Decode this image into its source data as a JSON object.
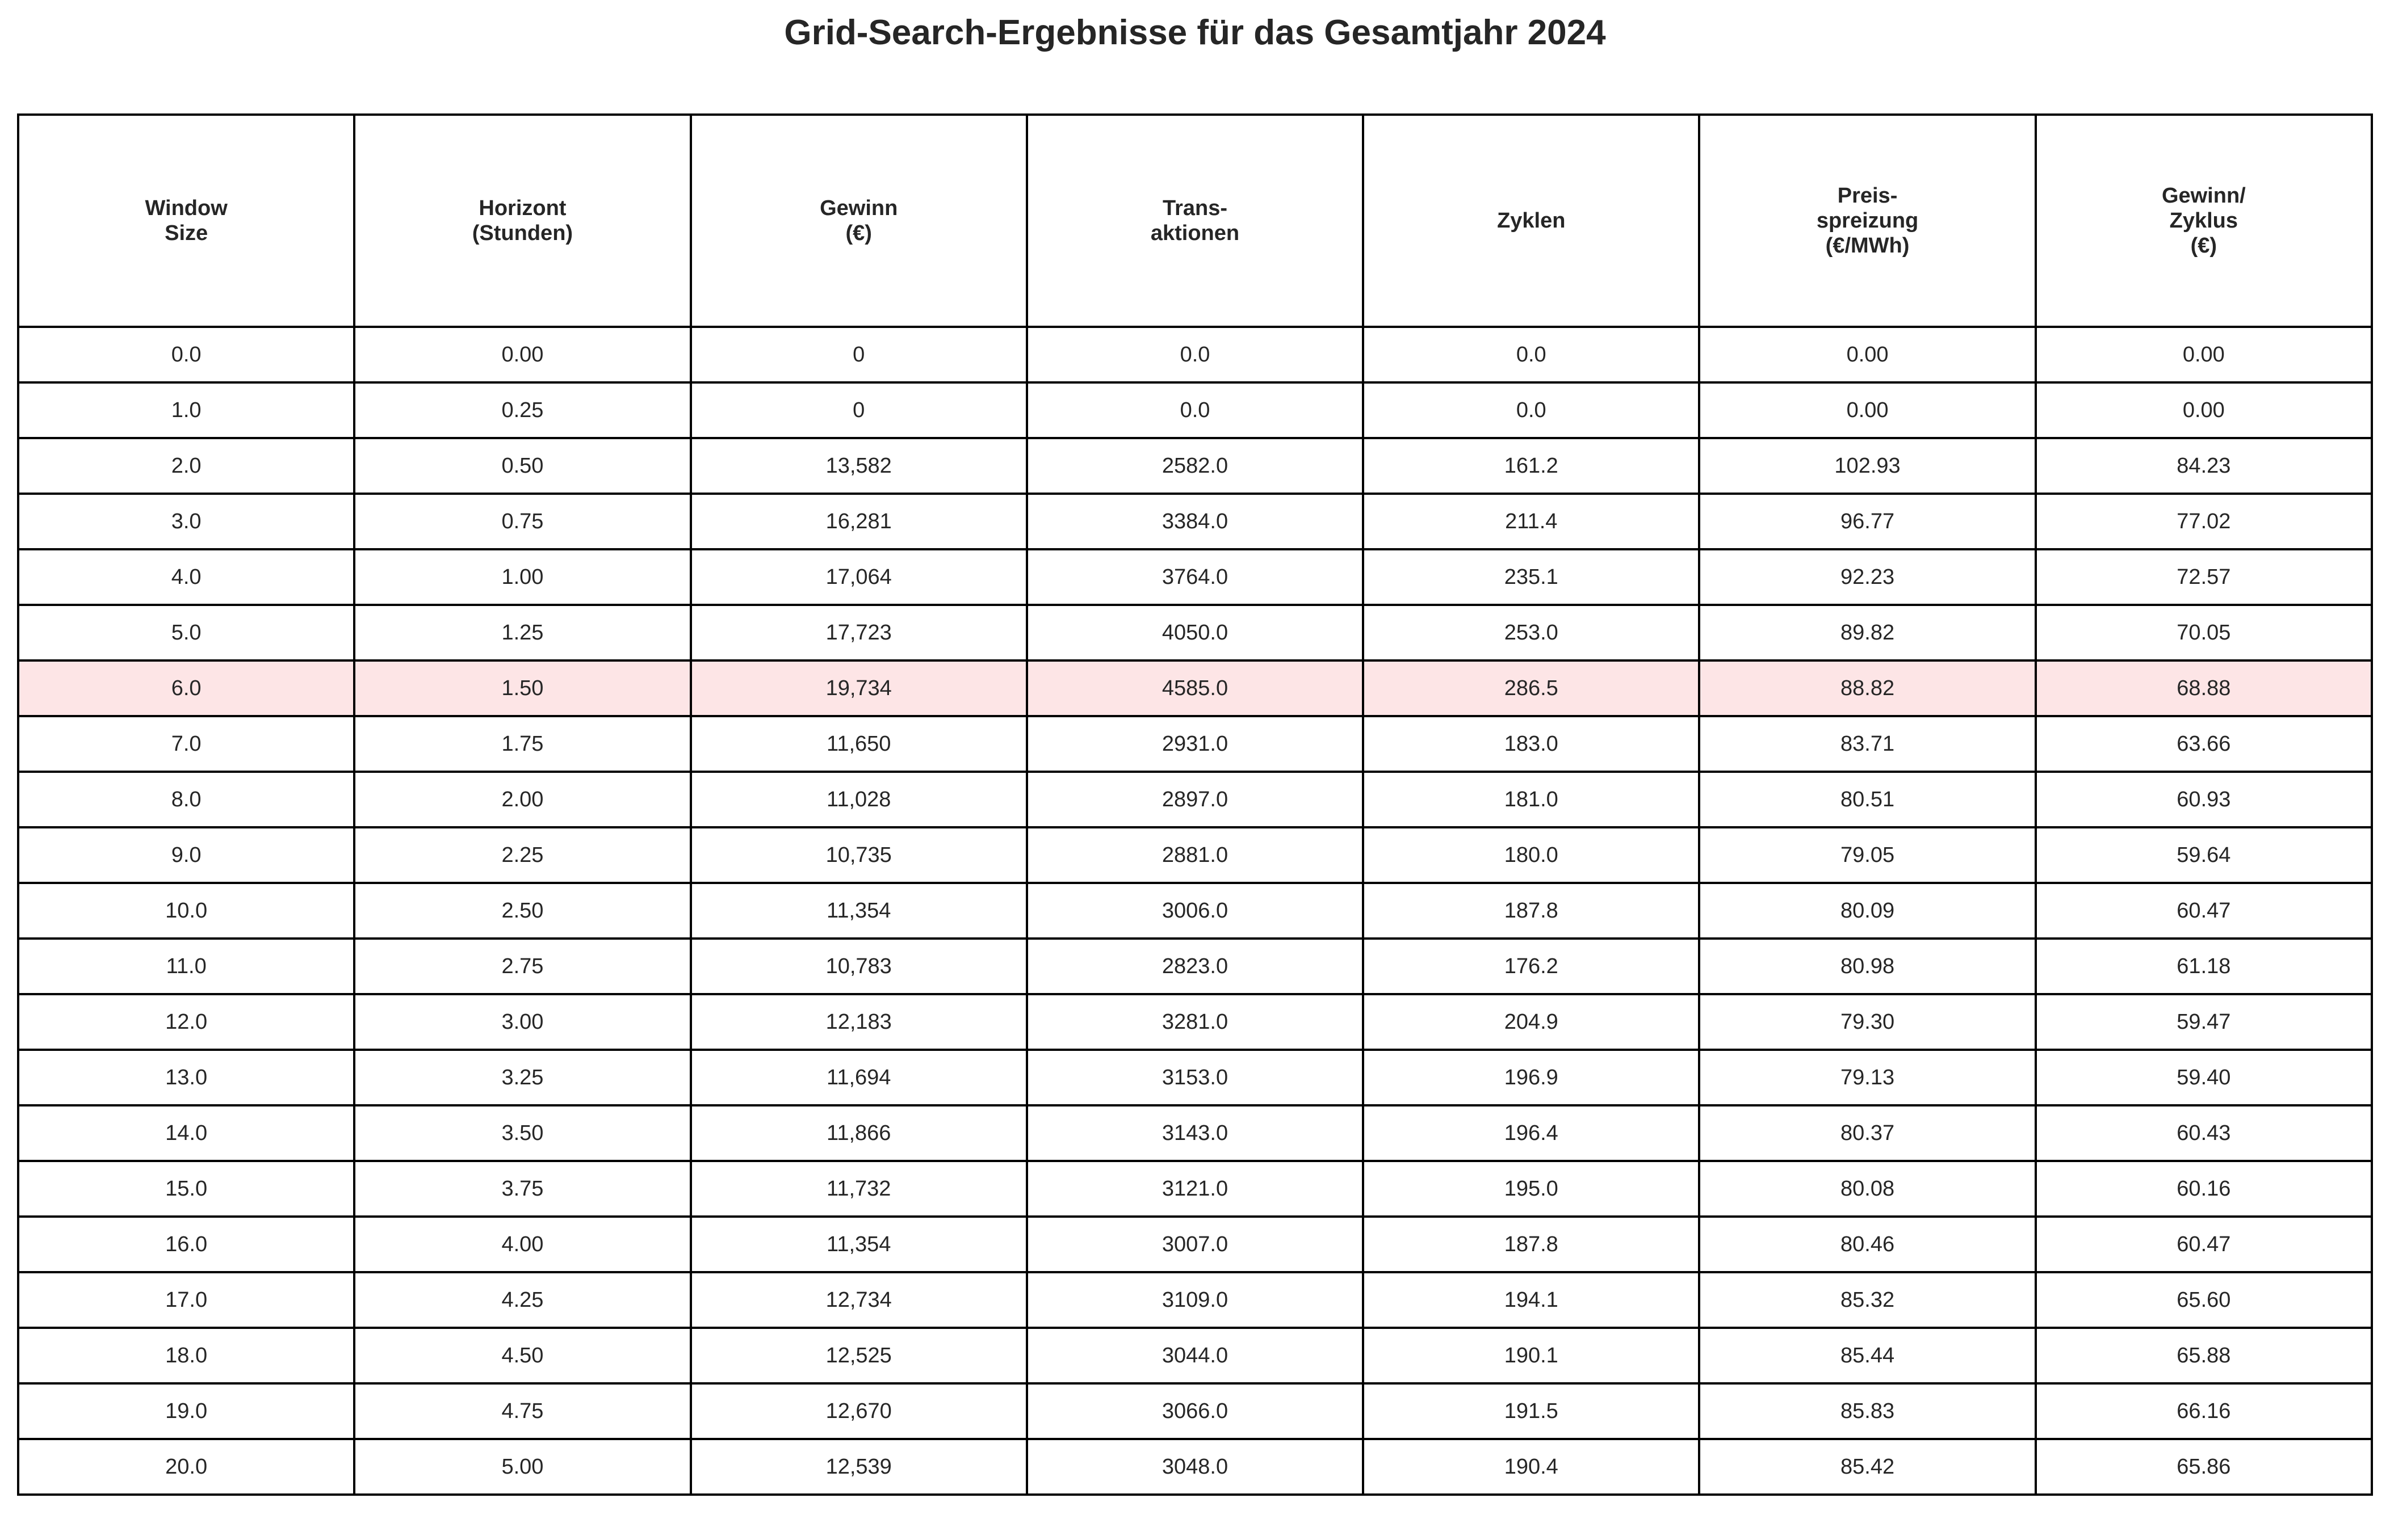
{
  "chart_data": {
    "type": "table",
    "title": "Grid-Search-Ergebnisse für das Gesamtjahr 2024",
    "columns": [
      "Window\nSize",
      "Horizont\n(Stunden)",
      "Gewinn\n(€)",
      "Trans-\naktionen",
      "Zyklen",
      "Preis-\nspreizung\n(€/MWh)",
      "Gewinn/\nZyklus\n(€)"
    ],
    "rows": [
      [
        "0.0",
        "0.00",
        "0",
        "0.0",
        "0.0",
        "0.00",
        "0.00"
      ],
      [
        "1.0",
        "0.25",
        "0",
        "0.0",
        "0.0",
        "0.00",
        "0.00"
      ],
      [
        "2.0",
        "0.50",
        "13,582",
        "2582.0",
        "161.2",
        "102.93",
        "84.23"
      ],
      [
        "3.0",
        "0.75",
        "16,281",
        "3384.0",
        "211.4",
        "96.77",
        "77.02"
      ],
      [
        "4.0",
        "1.00",
        "17,064",
        "3764.0",
        "235.1",
        "92.23",
        "72.57"
      ],
      [
        "5.0",
        "1.25",
        "17,723",
        "4050.0",
        "253.0",
        "89.82",
        "70.05"
      ],
      [
        "6.0",
        "1.50",
        "19,734",
        "4585.0",
        "286.5",
        "88.82",
        "68.88"
      ],
      [
        "7.0",
        "1.75",
        "11,650",
        "2931.0",
        "183.0",
        "83.71",
        "63.66"
      ],
      [
        "8.0",
        "2.00",
        "11,028",
        "2897.0",
        "181.0",
        "80.51",
        "60.93"
      ],
      [
        "9.0",
        "2.25",
        "10,735",
        "2881.0",
        "180.0",
        "79.05",
        "59.64"
      ],
      [
        "10.0",
        "2.50",
        "11,354",
        "3006.0",
        "187.8",
        "80.09",
        "60.47"
      ],
      [
        "11.0",
        "2.75",
        "10,783",
        "2823.0",
        "176.2",
        "80.98",
        "61.18"
      ],
      [
        "12.0",
        "3.00",
        "12,183",
        "3281.0",
        "204.9",
        "79.30",
        "59.47"
      ],
      [
        "13.0",
        "3.25",
        "11,694",
        "3153.0",
        "196.9",
        "79.13",
        "59.40"
      ],
      [
        "14.0",
        "3.50",
        "11,866",
        "3143.0",
        "196.4",
        "80.37",
        "60.43"
      ],
      [
        "15.0",
        "3.75",
        "11,732",
        "3121.0",
        "195.0",
        "80.08",
        "60.16"
      ],
      [
        "16.0",
        "4.00",
        "11,354",
        "3007.0",
        "187.8",
        "80.46",
        "60.47"
      ],
      [
        "17.0",
        "4.25",
        "12,734",
        "3109.0",
        "194.1",
        "85.32",
        "65.60"
      ],
      [
        "18.0",
        "4.50",
        "12,525",
        "3044.0",
        "190.1",
        "85.44",
        "65.88"
      ],
      [
        "19.0",
        "4.75",
        "12,670",
        "3066.0",
        "191.5",
        "85.83",
        "66.16"
      ],
      [
        "20.0",
        "5.00",
        "12,539",
        "3048.0",
        "190.4",
        "85.42",
        "65.86"
      ]
    ],
    "highlighted_row": 6,
    "highlight_color": "#fde5e6",
    "border_color": "#000000",
    "text_color": "#262626"
  }
}
